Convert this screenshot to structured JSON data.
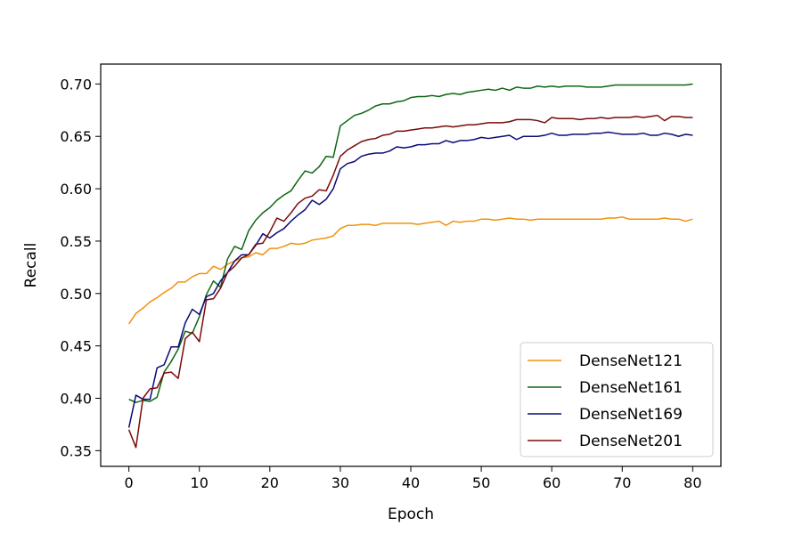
{
  "chart_data": {
    "type": "line",
    "title": "",
    "xlabel": "Epoch",
    "ylabel": "Recall",
    "xlim": [
      -4,
      84
    ],
    "ylim": [
      0.335,
      0.719
    ],
    "x_ticks": [
      0,
      10,
      20,
      30,
      40,
      50,
      60,
      70,
      80
    ],
    "x_tick_labels": [
      "0",
      "10",
      "20",
      "30",
      "40",
      "50",
      "60",
      "70",
      "80"
    ],
    "y_ticks": [
      0.35,
      0.4,
      0.45,
      0.5,
      0.55,
      0.6,
      0.65,
      0.7
    ],
    "y_tick_labels": [
      "0.35",
      "0.40",
      "0.45",
      "0.50",
      "0.55",
      "0.60",
      "0.65",
      "0.70"
    ],
    "grid": false,
    "legend_position": "lower-right",
    "x": [
      0,
      1,
      2,
      3,
      4,
      5,
      6,
      7,
      8,
      9,
      10,
      11,
      12,
      13,
      14,
      15,
      16,
      17,
      18,
      19,
      20,
      21,
      22,
      23,
      24,
      25,
      26,
      27,
      28,
      29,
      30,
      31,
      32,
      33,
      34,
      35,
      36,
      37,
      38,
      39,
      40,
      41,
      42,
      43,
      44,
      45,
      46,
      47,
      48,
      49,
      50,
      51,
      52,
      53,
      54,
      55,
      56,
      57,
      58,
      59,
      60,
      61,
      62,
      63,
      64,
      65,
      66,
      67,
      68,
      69,
      70,
      71,
      72,
      73,
      74,
      75,
      76,
      77,
      78,
      79,
      80
    ],
    "series": [
      {
        "name": "DenseNet121",
        "color": "#f0920e",
        "values": [
          0.471,
          0.481,
          0.486,
          0.492,
          0.496,
          0.501,
          0.505,
          0.511,
          0.511,
          0.516,
          0.519,
          0.519,
          0.526,
          0.523,
          0.528,
          0.531,
          0.534,
          0.535,
          0.539,
          0.537,
          0.543,
          0.543,
          0.545,
          0.548,
          0.547,
          0.548,
          0.551,
          0.552,
          0.553,
          0.555,
          0.562,
          0.565,
          0.565,
          0.566,
          0.566,
          0.565,
          0.567,
          0.567,
          0.567,
          0.567,
          0.567,
          0.566,
          0.567,
          0.568,
          0.569,
          0.565,
          0.569,
          0.568,
          0.569,
          0.569,
          0.571,
          0.571,
          0.57,
          0.571,
          0.572,
          0.571,
          0.571,
          0.57,
          0.571,
          0.571,
          0.571,
          0.571,
          0.571,
          0.571,
          0.571,
          0.571,
          0.571,
          0.571,
          0.572,
          0.572,
          0.573,
          0.571,
          0.571,
          0.571,
          0.571,
          0.571,
          0.572,
          0.571,
          0.571,
          0.569,
          0.571
        ]
      },
      {
        "name": "DenseNet161",
        "color": "#0d6611",
        "values": [
          0.399,
          0.396,
          0.398,
          0.397,
          0.401,
          0.425,
          0.435,
          0.447,
          0.464,
          0.462,
          0.478,
          0.499,
          0.512,
          0.506,
          0.533,
          0.545,
          0.542,
          0.56,
          0.57,
          0.577,
          0.582,
          0.589,
          0.594,
          0.598,
          0.608,
          0.617,
          0.615,
          0.621,
          0.631,
          0.63,
          0.66,
          0.665,
          0.67,
          0.672,
          0.675,
          0.679,
          0.681,
          0.681,
          0.683,
          0.684,
          0.687,
          0.688,
          0.688,
          0.689,
          0.688,
          0.69,
          0.691,
          0.69,
          0.692,
          0.693,
          0.694,
          0.695,
          0.694,
          0.696,
          0.694,
          0.697,
          0.696,
          0.696,
          0.698,
          0.697,
          0.698,
          0.697,
          0.698,
          0.698,
          0.698,
          0.697,
          0.697,
          0.697,
          0.698,
          0.699,
          0.699,
          0.699,
          0.699,
          0.699,
          0.699,
          0.699,
          0.699,
          0.699,
          0.699,
          0.699,
          0.7
        ]
      },
      {
        "name": "DenseNet169",
        "color": "#0a0a7a",
        "values": [
          0.372,
          0.403,
          0.399,
          0.399,
          0.429,
          0.432,
          0.449,
          0.449,
          0.472,
          0.485,
          0.48,
          0.497,
          0.5,
          0.512,
          0.52,
          0.531,
          0.537,
          0.537,
          0.546,
          0.557,
          0.553,
          0.558,
          0.562,
          0.569,
          0.575,
          0.58,
          0.589,
          0.585,
          0.59,
          0.6,
          0.619,
          0.624,
          0.626,
          0.631,
          0.633,
          0.634,
          0.634,
          0.636,
          0.64,
          0.639,
          0.64,
          0.642,
          0.642,
          0.643,
          0.643,
          0.646,
          0.644,
          0.646,
          0.646,
          0.647,
          0.649,
          0.648,
          0.649,
          0.65,
          0.651,
          0.647,
          0.65,
          0.65,
          0.65,
          0.651,
          0.653,
          0.651,
          0.651,
          0.652,
          0.652,
          0.652,
          0.653,
          0.653,
          0.654,
          0.653,
          0.652,
          0.652,
          0.652,
          0.653,
          0.651,
          0.651,
          0.653,
          0.652,
          0.65,
          0.652,
          0.651
        ]
      },
      {
        "name": "DenseNet201",
        "color": "#7a0a0a",
        "values": [
          0.37,
          0.353,
          0.4,
          0.409,
          0.41,
          0.424,
          0.425,
          0.419,
          0.457,
          0.463,
          0.454,
          0.494,
          0.495,
          0.505,
          0.52,
          0.526,
          0.534,
          0.537,
          0.547,
          0.548,
          0.559,
          0.572,
          0.569,
          0.577,
          0.586,
          0.591,
          0.593,
          0.599,
          0.598,
          0.613,
          0.631,
          0.637,
          0.641,
          0.645,
          0.647,
          0.648,
          0.651,
          0.652,
          0.655,
          0.655,
          0.656,
          0.657,
          0.658,
          0.658,
          0.659,
          0.66,
          0.659,
          0.66,
          0.661,
          0.661,
          0.662,
          0.663,
          0.663,
          0.663,
          0.664,
          0.666,
          0.666,
          0.666,
          0.665,
          0.663,
          0.668,
          0.667,
          0.667,
          0.667,
          0.666,
          0.667,
          0.667,
          0.668,
          0.667,
          0.668,
          0.668,
          0.668,
          0.669,
          0.668,
          0.669,
          0.67,
          0.665,
          0.669,
          0.669,
          0.668,
          0.668
        ]
      }
    ]
  }
}
